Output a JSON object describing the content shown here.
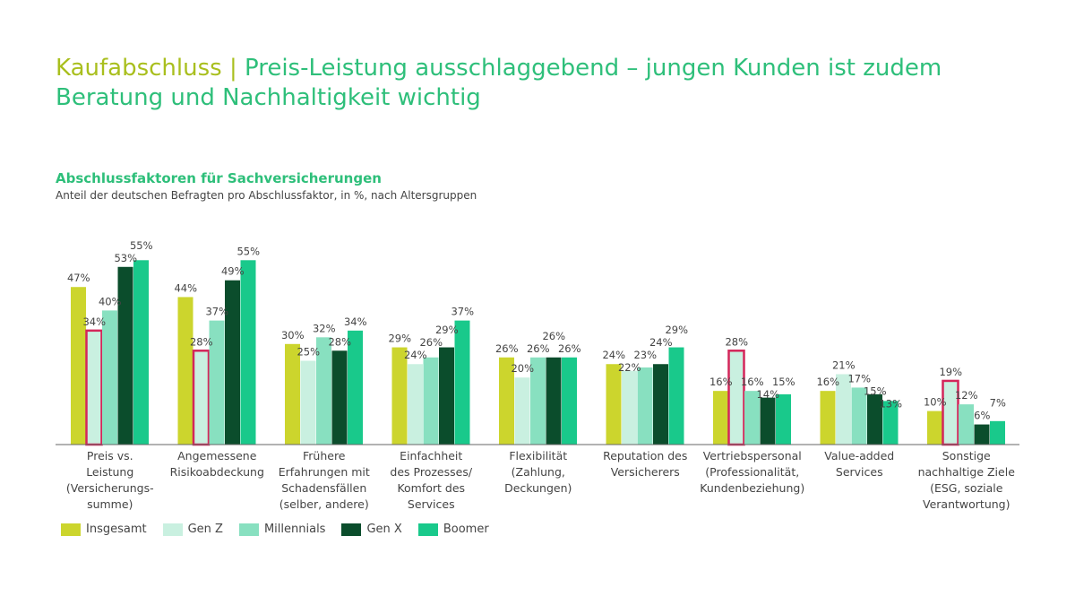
{
  "header": {
    "title_lead": "Kaufabschluss |",
    "title_rest": "Preis-Leistung ausschlaggebend – jungen Kunden ist zudem Beratung und Nachhaltigkeit wichtig"
  },
  "colors": {
    "Insgesamt": "#ccd52d",
    "Gen Z": "#c9f0e0",
    "Millennials": "#88e0c0",
    "Gen X": "#0b4d2c",
    "Boomer": "#19c98b",
    "highlight": "#d4265a"
  },
  "chart_data": {
    "type": "bar",
    "title": "Abschlussfaktoren für Sachversicherungen",
    "subtitle": "Anteil der deutschen Befragten pro Abschlussfaktor, in %, nach Altersgruppen",
    "categories": [
      [
        "Preis vs.",
        "Leistung",
        "(Versicherungs-",
        "summe)"
      ],
      [
        "Angemessene",
        "Risikoabdeckung"
      ],
      [
        "Frühere",
        "Erfahrungen mit",
        "Schadensfällen",
        "(selber, andere)"
      ],
      [
        "Einfachheit",
        "des Prozesses/",
        "Komfort des",
        "Services"
      ],
      [
        "Flexibilität",
        "(Zahlung,",
        "Deckungen)"
      ],
      [
        "Reputation des",
        "Versicherers"
      ],
      [
        "Vertriebspersonal",
        "(Professionalität,",
        "Kundenbeziehung)"
      ],
      [
        "Value-added",
        "Services"
      ],
      [
        "Sonstige",
        "nachhaltige Ziele",
        "(ESG, soziale",
        "Verantwortung)"
      ]
    ],
    "series": [
      {
        "name": "Insgesamt",
        "values": [
          47,
          44,
          30,
          29,
          26,
          24,
          16,
          16,
          10
        ]
      },
      {
        "name": "Gen Z",
        "values": [
          34,
          28,
          25,
          24,
          20,
          22,
          28,
          21,
          19
        ]
      },
      {
        "name": "Millennials",
        "values": [
          40,
          37,
          32,
          26,
          26,
          23,
          16,
          17,
          12
        ]
      },
      {
        "name": "Gen X",
        "values": [
          53,
          49,
          28,
          29,
          26,
          24,
          14,
          15,
          6
        ]
      },
      {
        "name": "Boomer",
        "values": [
          55,
          55,
          34,
          37,
          26,
          29,
          15,
          13,
          7
        ]
      }
    ],
    "highlighted": [
      {
        "series": "Gen Z",
        "category_index": 0
      },
      {
        "series": "Gen Z",
        "category_index": 1
      },
      {
        "series": "Gen Z",
        "category_index": 6
      },
      {
        "series": "Gen Z",
        "category_index": 8
      }
    ],
    "value_suffix": "%",
    "ylim": [
      0,
      60
    ],
    "grid": false,
    "legend_position": "bottom-left"
  }
}
